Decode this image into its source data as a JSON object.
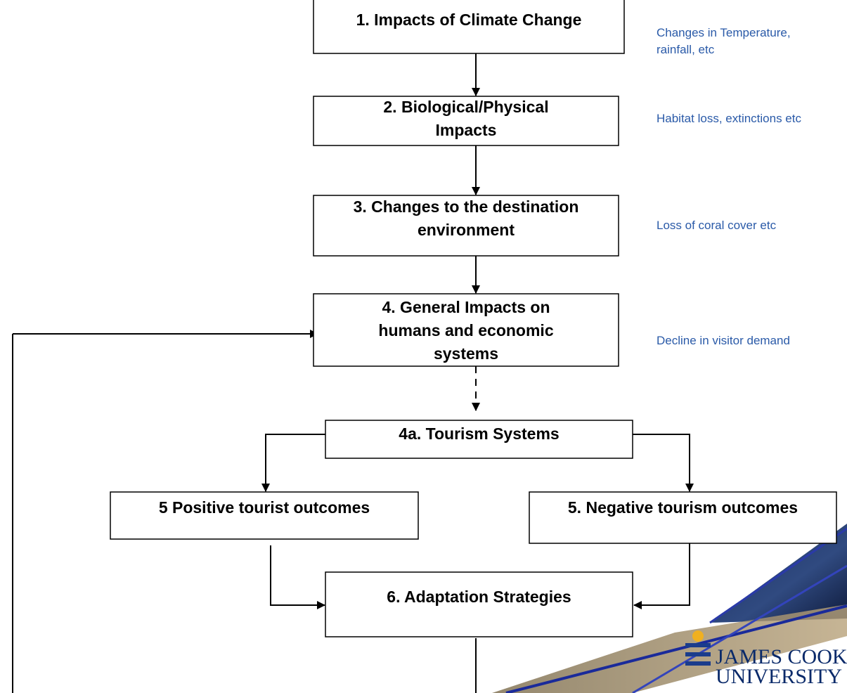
{
  "nodes": [
    {
      "lines": [
        "1. Impacts of Climate Change"
      ]
    },
    {
      "lines": [
        "2. Biological/Physical",
        "Impacts"
      ]
    },
    {
      "lines": [
        "3. Changes to the destination",
        "environment"
      ]
    },
    {
      "lines": [
        "4. General Impacts on",
        "humans and economic",
        "systems"
      ]
    },
    {
      "lines": [
        "4a. Tourism Systems"
      ]
    },
    {
      "lines": [
        "5 Positive tourist outcomes"
      ]
    },
    {
      "lines": [
        "5. Negative tourism outcomes"
      ]
    },
    {
      "lines": [
        "6. Adaptation Strategies"
      ]
    }
  ],
  "notes": [
    {
      "lines": [
        "Changes in Temperature,",
        " rainfall, etc"
      ]
    },
    {
      "lines": [
        "Habitat loss, extinctions etc"
      ]
    },
    {
      "lines": [
        "Loss of coral cover etc"
      ]
    },
    {
      "lines": [
        "Decline in visitor demand"
      ]
    }
  ],
  "logo": {
    "lines": [
      "JAMES COOK",
      "UNIVERSITY"
    ]
  }
}
